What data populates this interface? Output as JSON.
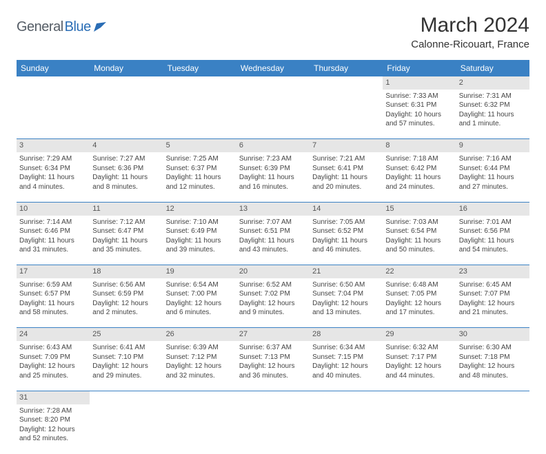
{
  "logo": {
    "text1": "General",
    "text2": "Blue"
  },
  "title": "March 2024",
  "location": "Calonne-Ricouart, France",
  "colors": {
    "header_bg": "#3a81c4",
    "header_text": "#ffffff",
    "daynum_bg": "#e6e6e6",
    "border": "#3a81c4",
    "logo_gray": "#555d66",
    "logo_blue": "#2a6db5"
  },
  "weekdays": [
    "Sunday",
    "Monday",
    "Tuesday",
    "Wednesday",
    "Thursday",
    "Friday",
    "Saturday"
  ],
  "weeks": [
    {
      "nums": [
        "",
        "",
        "",
        "",
        "",
        "1",
        "2"
      ],
      "cells": [
        null,
        null,
        null,
        null,
        null,
        {
          "sunrise": "Sunrise: 7:33 AM",
          "sunset": "Sunset: 6:31 PM",
          "day1": "Daylight: 10 hours",
          "day2": "and 57 minutes."
        },
        {
          "sunrise": "Sunrise: 7:31 AM",
          "sunset": "Sunset: 6:32 PM",
          "day1": "Daylight: 11 hours",
          "day2": "and 1 minute."
        }
      ]
    },
    {
      "nums": [
        "3",
        "4",
        "5",
        "6",
        "7",
        "8",
        "9"
      ],
      "cells": [
        {
          "sunrise": "Sunrise: 7:29 AM",
          "sunset": "Sunset: 6:34 PM",
          "day1": "Daylight: 11 hours",
          "day2": "and 4 minutes."
        },
        {
          "sunrise": "Sunrise: 7:27 AM",
          "sunset": "Sunset: 6:36 PM",
          "day1": "Daylight: 11 hours",
          "day2": "and 8 minutes."
        },
        {
          "sunrise": "Sunrise: 7:25 AM",
          "sunset": "Sunset: 6:37 PM",
          "day1": "Daylight: 11 hours",
          "day2": "and 12 minutes."
        },
        {
          "sunrise": "Sunrise: 7:23 AM",
          "sunset": "Sunset: 6:39 PM",
          "day1": "Daylight: 11 hours",
          "day2": "and 16 minutes."
        },
        {
          "sunrise": "Sunrise: 7:21 AM",
          "sunset": "Sunset: 6:41 PM",
          "day1": "Daylight: 11 hours",
          "day2": "and 20 minutes."
        },
        {
          "sunrise": "Sunrise: 7:18 AM",
          "sunset": "Sunset: 6:42 PM",
          "day1": "Daylight: 11 hours",
          "day2": "and 24 minutes."
        },
        {
          "sunrise": "Sunrise: 7:16 AM",
          "sunset": "Sunset: 6:44 PM",
          "day1": "Daylight: 11 hours",
          "day2": "and 27 minutes."
        }
      ]
    },
    {
      "nums": [
        "10",
        "11",
        "12",
        "13",
        "14",
        "15",
        "16"
      ],
      "cells": [
        {
          "sunrise": "Sunrise: 7:14 AM",
          "sunset": "Sunset: 6:46 PM",
          "day1": "Daylight: 11 hours",
          "day2": "and 31 minutes."
        },
        {
          "sunrise": "Sunrise: 7:12 AM",
          "sunset": "Sunset: 6:47 PM",
          "day1": "Daylight: 11 hours",
          "day2": "and 35 minutes."
        },
        {
          "sunrise": "Sunrise: 7:10 AM",
          "sunset": "Sunset: 6:49 PM",
          "day1": "Daylight: 11 hours",
          "day2": "and 39 minutes."
        },
        {
          "sunrise": "Sunrise: 7:07 AM",
          "sunset": "Sunset: 6:51 PM",
          "day1": "Daylight: 11 hours",
          "day2": "and 43 minutes."
        },
        {
          "sunrise": "Sunrise: 7:05 AM",
          "sunset": "Sunset: 6:52 PM",
          "day1": "Daylight: 11 hours",
          "day2": "and 46 minutes."
        },
        {
          "sunrise": "Sunrise: 7:03 AM",
          "sunset": "Sunset: 6:54 PM",
          "day1": "Daylight: 11 hours",
          "day2": "and 50 minutes."
        },
        {
          "sunrise": "Sunrise: 7:01 AM",
          "sunset": "Sunset: 6:56 PM",
          "day1": "Daylight: 11 hours",
          "day2": "and 54 minutes."
        }
      ]
    },
    {
      "nums": [
        "17",
        "18",
        "19",
        "20",
        "21",
        "22",
        "23"
      ],
      "cells": [
        {
          "sunrise": "Sunrise: 6:59 AM",
          "sunset": "Sunset: 6:57 PM",
          "day1": "Daylight: 11 hours",
          "day2": "and 58 minutes."
        },
        {
          "sunrise": "Sunrise: 6:56 AM",
          "sunset": "Sunset: 6:59 PM",
          "day1": "Daylight: 12 hours",
          "day2": "and 2 minutes."
        },
        {
          "sunrise": "Sunrise: 6:54 AM",
          "sunset": "Sunset: 7:00 PM",
          "day1": "Daylight: 12 hours",
          "day2": "and 6 minutes."
        },
        {
          "sunrise": "Sunrise: 6:52 AM",
          "sunset": "Sunset: 7:02 PM",
          "day1": "Daylight: 12 hours",
          "day2": "and 9 minutes."
        },
        {
          "sunrise": "Sunrise: 6:50 AM",
          "sunset": "Sunset: 7:04 PM",
          "day1": "Daylight: 12 hours",
          "day2": "and 13 minutes."
        },
        {
          "sunrise": "Sunrise: 6:48 AM",
          "sunset": "Sunset: 7:05 PM",
          "day1": "Daylight: 12 hours",
          "day2": "and 17 minutes."
        },
        {
          "sunrise": "Sunrise: 6:45 AM",
          "sunset": "Sunset: 7:07 PM",
          "day1": "Daylight: 12 hours",
          "day2": "and 21 minutes."
        }
      ]
    },
    {
      "nums": [
        "24",
        "25",
        "26",
        "27",
        "28",
        "29",
        "30"
      ],
      "cells": [
        {
          "sunrise": "Sunrise: 6:43 AM",
          "sunset": "Sunset: 7:09 PM",
          "day1": "Daylight: 12 hours",
          "day2": "and 25 minutes."
        },
        {
          "sunrise": "Sunrise: 6:41 AM",
          "sunset": "Sunset: 7:10 PM",
          "day1": "Daylight: 12 hours",
          "day2": "and 29 minutes."
        },
        {
          "sunrise": "Sunrise: 6:39 AM",
          "sunset": "Sunset: 7:12 PM",
          "day1": "Daylight: 12 hours",
          "day2": "and 32 minutes."
        },
        {
          "sunrise": "Sunrise: 6:37 AM",
          "sunset": "Sunset: 7:13 PM",
          "day1": "Daylight: 12 hours",
          "day2": "and 36 minutes."
        },
        {
          "sunrise": "Sunrise: 6:34 AM",
          "sunset": "Sunset: 7:15 PM",
          "day1": "Daylight: 12 hours",
          "day2": "and 40 minutes."
        },
        {
          "sunrise": "Sunrise: 6:32 AM",
          "sunset": "Sunset: 7:17 PM",
          "day1": "Daylight: 12 hours",
          "day2": "and 44 minutes."
        },
        {
          "sunrise": "Sunrise: 6:30 AM",
          "sunset": "Sunset: 7:18 PM",
          "day1": "Daylight: 12 hours",
          "day2": "and 48 minutes."
        }
      ]
    },
    {
      "nums": [
        "31",
        "",
        "",
        "",
        "",
        "",
        ""
      ],
      "cells": [
        {
          "sunrise": "Sunrise: 7:28 AM",
          "sunset": "Sunset: 8:20 PM",
          "day1": "Daylight: 12 hours",
          "day2": "and 52 minutes."
        },
        null,
        null,
        null,
        null,
        null,
        null
      ]
    }
  ]
}
